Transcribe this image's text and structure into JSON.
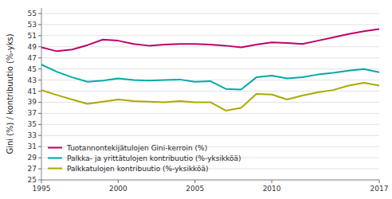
{
  "chart_data": {
    "type": "line",
    "ylabel": "Gini (%) / kontribuutio (%-yks)",
    "x": [
      1995,
      1996,
      1997,
      1998,
      1999,
      2000,
      2001,
      2002,
      2003,
      2004,
      2005,
      2006,
      2007,
      2008,
      2009,
      2010,
      2011,
      2012,
      2013,
      2014,
      2015,
      2016,
      2017
    ],
    "series": [
      {
        "name": "Tuotannontekijätulojen Gini-kerroin (%)",
        "color": "#C0006A",
        "values": [
          48.9,
          48.2,
          48.5,
          49.3,
          50.3,
          50.1,
          49.5,
          49.2,
          49.4,
          49.5,
          49.5,
          49.4,
          49.2,
          48.9,
          49.4,
          49.8,
          49.7,
          49.5,
          50.1,
          50.7,
          51.3,
          51.8,
          52.2
        ]
      },
      {
        "name": "Palkka- ja yrittätulojen kontribuutio (%-yksikköä)",
        "color": "#00AAAA",
        "values": [
          45.8,
          44.5,
          43.5,
          42.7,
          42.9,
          43.3,
          43.0,
          42.9,
          43.0,
          43.1,
          42.7,
          42.8,
          41.4,
          41.3,
          43.5,
          43.8,
          43.3,
          43.5,
          44.0,
          44.3,
          44.7,
          45.0,
          44.4
        ]
      },
      {
        "name": "Palkkatulojen kontribuutio (%-yksikköä)",
        "color": "#AAAA00",
        "values": [
          41.2,
          40.3,
          39.5,
          38.7,
          39.1,
          39.5,
          39.2,
          39.1,
          39.0,
          39.2,
          39.0,
          39.0,
          37.5,
          38.0,
          40.5,
          40.4,
          39.5,
          40.2,
          40.8,
          41.2,
          42.0,
          42.5,
          42.0
        ]
      }
    ],
    "xlim": [
      1995,
      2017
    ],
    "xticks": [
      1995,
      2000,
      2005,
      2010,
      2017
    ],
    "ylim": [
      25,
      56
    ],
    "yticks": [
      25,
      27,
      29,
      31,
      33,
      35,
      37,
      39,
      41,
      43,
      45,
      47,
      49,
      51,
      53,
      55
    ],
    "grid": "y",
    "legend": "lower left"
  }
}
